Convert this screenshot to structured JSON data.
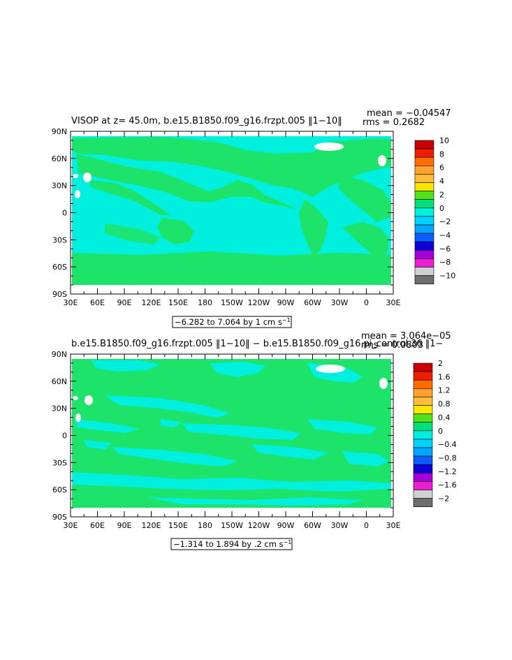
{
  "top": {
    "title": "VISOP at z=   45.0m, b.e15.B1850.f09_g16.frzpt.005 ‖1−10‖",
    "mean": "mean = −0.04547",
    "rms": "rms = 0.2682",
    "range": "−6.282 to 7.064 by 1 cm s",
    "unit_exp": "−1",
    "colorbar_labels": [
      "10",
      "8",
      "6",
      "4",
      "2",
      "0",
      "−2",
      "−4",
      "−6",
      "−8",
      "−10"
    ]
  },
  "bottom": {
    "title": "b.e15.B1850.f09_g16.frzpt.005 ‖1−10‖ − b.e15.B1850.f09_g16.pi_control.36 ‖1−",
    "mean": "mean = 3.064e−05",
    "rms": "rms = 0.0803",
    "range": "−1.314 to 1.894 by .2 cm s",
    "unit_exp": "−1",
    "colorbar_labels": [
      "2",
      "1.6",
      "1.2",
      "0.8",
      "0.4",
      "0",
      "−0.4",
      "−0.8",
      "−1.2",
      "−1.6",
      "−2"
    ]
  },
  "lat_labels": [
    "90N",
    "60N",
    "30N",
    "0",
    "30S",
    "60S",
    "90S"
  ],
  "lon_labels": [
    "30E",
    "60E",
    "90E",
    "120E",
    "150E",
    "180",
    "150W",
    "120W",
    "90W",
    "60W",
    "30W",
    "0",
    "30E"
  ],
  "colors": {
    "green": "#1ee36b",
    "cyan": "#00efdf",
    "scale": [
      "#c80000",
      "#f01e00",
      "#ff6c00",
      "#ffa130",
      "#ffbc3a",
      "#ffe600",
      "#52e21c",
      "#00e07c",
      "#00efdf",
      "#00d1ff",
      "#00a6ff",
      "#0a5cfe",
      "#0d00d8",
      "#a400d8",
      "#ee1cd4",
      "#d0d0d0",
      "#6e6e6e"
    ]
  }
}
